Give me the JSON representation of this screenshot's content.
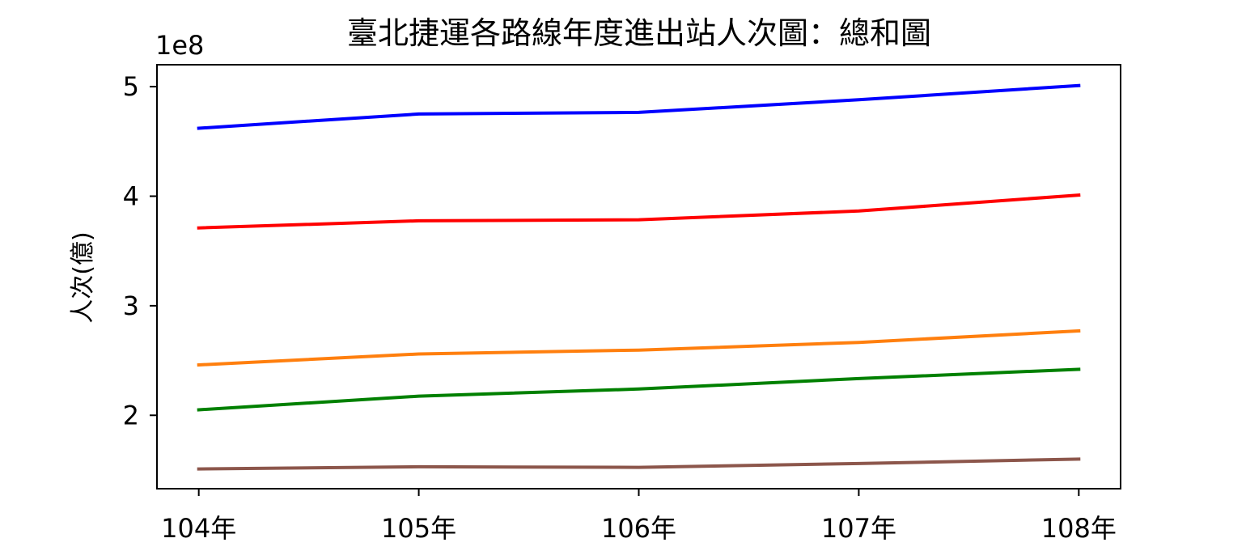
{
  "chart_data": {
    "type": "line",
    "title": "臺北捷運各路線年度進出站人次圖：總和圖",
    "xlabel": "",
    "ylabel": "人次(億)",
    "y_offset_label": "1e8",
    "categories": [
      "104年",
      "105年",
      "106年",
      "107年",
      "108年"
    ],
    "xlim": [
      -0.19,
      4.19
    ],
    "ylim": [
      1.33,
      5.2
    ],
    "yticks": [
      2,
      3,
      4,
      5
    ],
    "ytick_labels": [
      "2",
      "3",
      "4",
      "5"
    ],
    "grid": false,
    "legend": "none",
    "series": [
      {
        "color": "#0000ff",
        "values": [
          4.62,
          4.75,
          4.765,
          4.88,
          5.01
        ]
      },
      {
        "color": "#ff0000",
        "values": [
          3.71,
          3.775,
          3.785,
          3.865,
          4.01
        ]
      },
      {
        "color": "#ff7f0e",
        "values": [
          2.46,
          2.56,
          2.595,
          2.665,
          2.77
        ]
      },
      {
        "color": "#008000",
        "values": [
          2.05,
          2.175,
          2.24,
          2.335,
          2.42
        ]
      },
      {
        "color": "#8c564b",
        "values": [
          1.51,
          1.53,
          1.525,
          1.56,
          1.6
        ]
      }
    ]
  }
}
